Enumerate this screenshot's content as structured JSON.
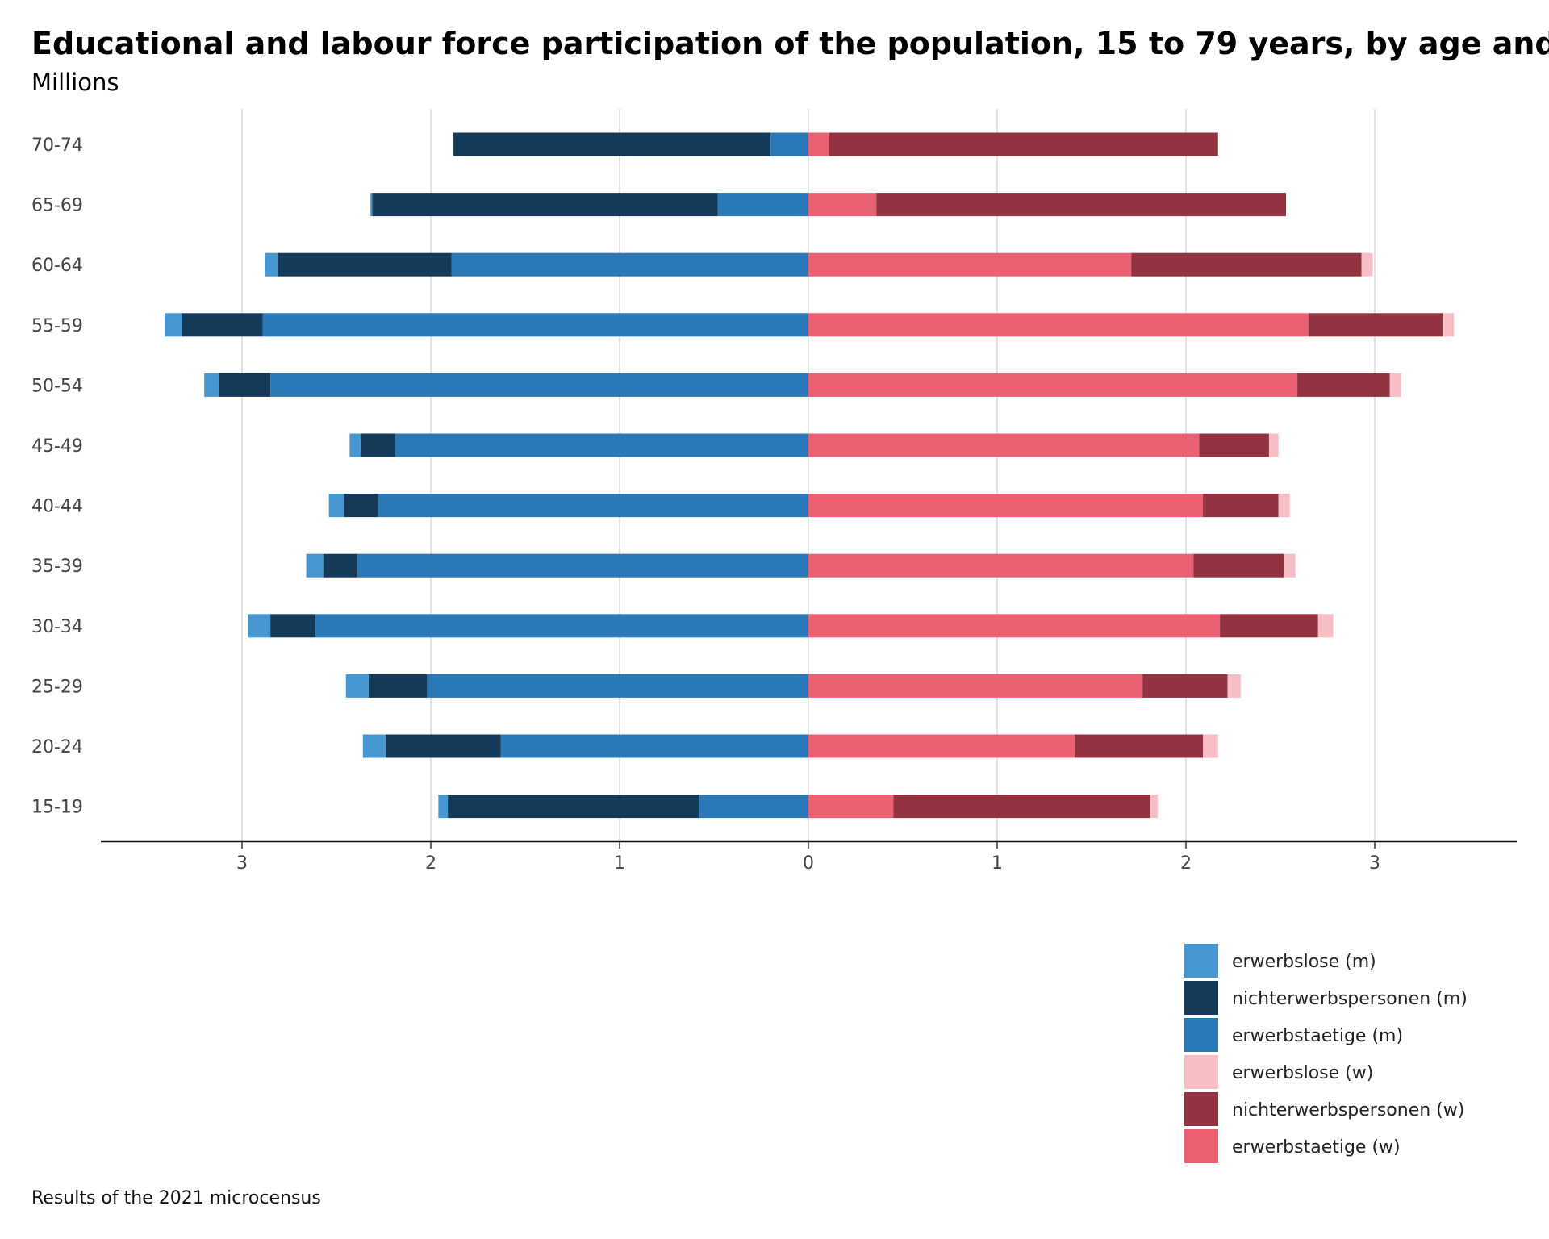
{
  "chart_data": {
    "type": "bar",
    "orientation": "horizontal-population-pyramid",
    "title": "Educational and labour force participation of the population, 15 to 79 years, by age and",
    "subtitle": "Millions",
    "caption": "Results of the 2021 microcensus",
    "xlim": [
      -3.75,
      3.75
    ],
    "x_ticks": [
      -3,
      -2,
      -1,
      0,
      1,
      2,
      3
    ],
    "x_tick_labels": [
      "3",
      "2",
      "1",
      "0",
      "1",
      "2",
      "3"
    ],
    "grid": "vertical",
    "legend_position": "bottom-right",
    "categories": [
      "70-74",
      "65-69",
      "60-64",
      "55-59",
      "50-54",
      "45-49",
      "40-44",
      "35-39",
      "30-34",
      "25-29",
      "20-24",
      "15-19"
    ],
    "series": [
      {
        "name": "erwerbslose (m)",
        "side": "left",
        "color": "#4596d1",
        "values": [
          0.0,
          0.01,
          0.07,
          0.09,
          0.08,
          0.06,
          0.08,
          0.09,
          0.12,
          0.12,
          0.12,
          0.05
        ]
      },
      {
        "name": "nichterwerbspersonen (m)",
        "side": "left",
        "color": "#143a5a",
        "values": [
          1.68,
          1.83,
          0.92,
          0.43,
          0.27,
          0.18,
          0.18,
          0.18,
          0.24,
          0.31,
          0.61,
          1.33
        ]
      },
      {
        "name": "erwerbstaetige (m)",
        "side": "left",
        "color": "#2a78b6",
        "values": [
          0.2,
          0.48,
          1.89,
          2.89,
          2.85,
          2.19,
          2.28,
          2.39,
          2.61,
          2.02,
          1.63,
          0.58
        ]
      },
      {
        "name": "erwerbslose (w)",
        "side": "right",
        "color": "#f7bec5",
        "values": [
          0.0,
          0.0,
          0.06,
          0.06,
          0.06,
          0.05,
          0.06,
          0.06,
          0.08,
          0.07,
          0.08,
          0.04
        ]
      },
      {
        "name": "nichterwerbspersonen (w)",
        "side": "right",
        "color": "#933240",
        "values": [
          2.06,
          2.17,
          1.22,
          0.71,
          0.49,
          0.37,
          0.4,
          0.48,
          0.52,
          0.45,
          0.68,
          1.36
        ]
      },
      {
        "name": "erwerbstaetige (w)",
        "side": "right",
        "color": "#eb6073",
        "values": [
          0.11,
          0.36,
          1.71,
          2.65,
          2.59,
          2.07,
          2.09,
          2.04,
          2.18,
          1.77,
          1.41,
          0.45
        ]
      }
    ]
  }
}
